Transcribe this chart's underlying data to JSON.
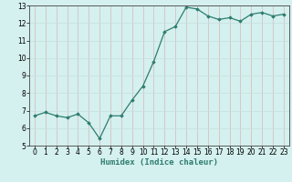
{
  "x": [
    0,
    1,
    2,
    3,
    4,
    5,
    6,
    7,
    8,
    9,
    10,
    11,
    12,
    13,
    14,
    15,
    16,
    17,
    18,
    19,
    20,
    21,
    22,
    23
  ],
  "y": [
    6.7,
    6.9,
    6.7,
    6.6,
    6.8,
    6.3,
    5.4,
    6.7,
    6.7,
    7.6,
    8.4,
    9.8,
    11.5,
    11.8,
    12.9,
    12.8,
    12.4,
    12.2,
    12.3,
    12.1,
    12.5,
    12.6,
    12.4,
    12.5
  ],
  "line_color": "#2e7d6e",
  "marker": "D",
  "marker_size": 1.8,
  "line_width": 0.9,
  "xlabel": "Humidex (Indice chaleur)",
  "xlim": [
    -0.5,
    23.5
  ],
  "ylim": [
    5,
    13
  ],
  "yticks": [
    5,
    6,
    7,
    8,
    9,
    10,
    11,
    12,
    13
  ],
  "xticks": [
    0,
    1,
    2,
    3,
    4,
    5,
    6,
    7,
    8,
    9,
    10,
    11,
    12,
    13,
    14,
    15,
    16,
    17,
    18,
    19,
    20,
    21,
    22,
    23
  ],
  "background_color": "#d4f0ef",
  "grid_color_major": "#c8dede",
  "grid_color_minor": "#e0ecec",
  "label_fontsize": 6.5,
  "tick_fontsize": 5.5
}
